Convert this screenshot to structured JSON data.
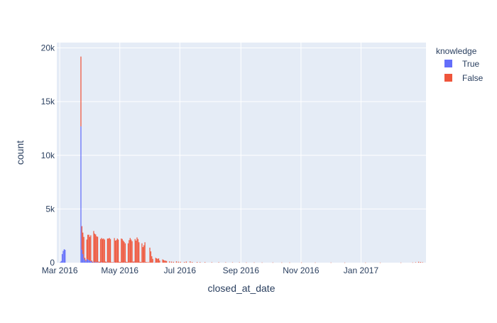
{
  "chart_data": {
    "type": "bar",
    "barmode": "stack",
    "xlabel": "closed_at_date",
    "ylabel": "count",
    "legend_title": "knowledge",
    "legend_position": "top-right",
    "grid": true,
    "x_range": [
      "2016-02-27",
      "2017-03-08"
    ],
    "ylim": [
      0,
      20500
    ],
    "x_ticks": [
      {
        "date": "2016-03-01",
        "label": "Mar 2016"
      },
      {
        "date": "2016-05-01",
        "label": "May 2016"
      },
      {
        "date": "2016-07-01",
        "label": "Jul 2016"
      },
      {
        "date": "2016-09-01",
        "label": "Sep 2016"
      },
      {
        "date": "2016-11-01",
        "label": "Nov 2016"
      },
      {
        "date": "2017-01-01",
        "label": "Jan 2017"
      }
    ],
    "y_ticks": [
      {
        "value": 0,
        "label": "0"
      },
      {
        "value": 5000,
        "label": "5k"
      },
      {
        "value": 10000,
        "label": "10k"
      },
      {
        "value": 15000,
        "label": "15k"
      },
      {
        "value": 20000,
        "label": "20k"
      }
    ],
    "series": [
      {
        "name": "True",
        "color": "#636efa",
        "points": [
          [
            "2016-03-01",
            50
          ],
          [
            "2016-03-02",
            150
          ],
          [
            "2016-03-03",
            800
          ],
          [
            "2016-03-04",
            1100
          ],
          [
            "2016-03-05",
            1250
          ],
          [
            "2016-03-06",
            1200
          ],
          [
            "2016-03-22",
            12700
          ],
          [
            "2016-03-23",
            1200
          ],
          [
            "2016-03-24",
            800
          ],
          [
            "2016-03-25",
            400
          ],
          [
            "2016-03-26",
            250
          ],
          [
            "2016-03-27",
            150
          ],
          [
            "2016-03-28",
            350
          ],
          [
            "2016-03-29",
            300
          ],
          [
            "2016-03-30",
            250
          ],
          [
            "2016-03-31",
            200
          ],
          [
            "2016-04-01",
            150
          ],
          [
            "2016-04-02",
            100
          ],
          [
            "2016-04-04",
            100
          ],
          [
            "2016-04-06",
            80
          ],
          [
            "2016-04-08",
            60
          ],
          [
            "2016-04-12",
            50
          ],
          [
            "2016-04-18",
            40
          ],
          [
            "2016-04-25",
            40
          ],
          [
            "2016-05-05",
            30
          ],
          [
            "2016-05-15",
            30
          ],
          [
            "2016-05-25",
            20
          ],
          [
            "2016-06-05",
            20
          ]
        ]
      },
      {
        "name": "False",
        "color": "#ef553b",
        "points": [
          [
            "2016-03-22",
            6500
          ],
          [
            "2016-03-23",
            2200
          ],
          [
            "2016-03-24",
            2000
          ],
          [
            "2016-03-25",
            2000
          ],
          [
            "2016-03-26",
            200
          ],
          [
            "2016-03-27",
            100
          ],
          [
            "2016-03-28",
            1800
          ],
          [
            "2016-03-29",
            2300
          ],
          [
            "2016-03-30",
            2350
          ],
          [
            "2016-03-31",
            2200
          ],
          [
            "2016-04-01",
            2400
          ],
          [
            "2016-04-02",
            100
          ],
          [
            "2016-04-03",
            80
          ],
          [
            "2016-04-04",
            2850
          ],
          [
            "2016-04-05",
            2700
          ],
          [
            "2016-04-06",
            2550
          ],
          [
            "2016-04-07",
            2450
          ],
          [
            "2016-04-08",
            2350
          ],
          [
            "2016-04-09",
            100
          ],
          [
            "2016-04-10",
            80
          ],
          [
            "2016-04-11",
            2200
          ],
          [
            "2016-04-12",
            2250
          ],
          [
            "2016-04-13",
            2200
          ],
          [
            "2016-04-14",
            2250
          ],
          [
            "2016-04-15",
            2150
          ],
          [
            "2016-04-16",
            100
          ],
          [
            "2016-04-17",
            80
          ],
          [
            "2016-04-18",
            2200
          ],
          [
            "2016-04-19",
            2250
          ],
          [
            "2016-04-20",
            2300
          ],
          [
            "2016-04-21",
            2200
          ],
          [
            "2016-04-22",
            50
          ],
          [
            "2016-04-23",
            40
          ],
          [
            "2016-04-24",
            40
          ],
          [
            "2016-04-25",
            2250
          ],
          [
            "2016-04-26",
            2050
          ],
          [
            "2016-04-27",
            2100
          ],
          [
            "2016-04-28",
            2250
          ],
          [
            "2016-04-29",
            2150
          ],
          [
            "2016-04-30",
            80
          ],
          [
            "2016-05-01",
            60
          ],
          [
            "2016-05-02",
            2250
          ],
          [
            "2016-05-03",
            2200
          ],
          [
            "2016-05-04",
            2050
          ],
          [
            "2016-05-05",
            1900
          ],
          [
            "2016-05-06",
            1800
          ],
          [
            "2016-05-07",
            80
          ],
          [
            "2016-05-08",
            60
          ],
          [
            "2016-05-09",
            1800
          ],
          [
            "2016-05-10",
            2100
          ],
          [
            "2016-05-11",
            2300
          ],
          [
            "2016-05-12",
            2150
          ],
          [
            "2016-05-13",
            2000
          ],
          [
            "2016-05-14",
            100
          ],
          [
            "2016-05-15",
            80
          ],
          [
            "2016-05-16",
            2200
          ],
          [
            "2016-05-17",
            2050
          ],
          [
            "2016-05-18",
            2350
          ],
          [
            "2016-05-19",
            2200
          ],
          [
            "2016-05-20",
            1900
          ],
          [
            "2016-05-21",
            80
          ],
          [
            "2016-05-22",
            60
          ],
          [
            "2016-05-23",
            1800
          ],
          [
            "2016-05-24",
            1450
          ],
          [
            "2016-05-25",
            1600
          ],
          [
            "2016-05-26",
            1900
          ],
          [
            "2016-05-27",
            60
          ],
          [
            "2016-05-28",
            50
          ],
          [
            "2016-05-29",
            40
          ],
          [
            "2016-05-30",
            40
          ],
          [
            "2016-05-31",
            1400
          ],
          [
            "2016-06-01",
            1050
          ],
          [
            "2016-06-02",
            600
          ],
          [
            "2016-06-03",
            350
          ],
          [
            "2016-06-06",
            450
          ],
          [
            "2016-06-07",
            400
          ],
          [
            "2016-06-08",
            350
          ],
          [
            "2016-06-09",
            400
          ],
          [
            "2016-06-10",
            200
          ],
          [
            "2016-06-13",
            300
          ],
          [
            "2016-06-14",
            250
          ],
          [
            "2016-06-15",
            200
          ],
          [
            "2016-06-16",
            180
          ],
          [
            "2016-06-17",
            150
          ],
          [
            "2016-06-20",
            120
          ],
          [
            "2016-06-22",
            100
          ],
          [
            "2016-06-24",
            80
          ],
          [
            "2016-06-27",
            120
          ],
          [
            "2016-06-29",
            90
          ],
          [
            "2016-07-01",
            80
          ],
          [
            "2016-07-05",
            60
          ],
          [
            "2016-07-07",
            100
          ],
          [
            "2016-07-11",
            120
          ],
          [
            "2016-07-13",
            60
          ],
          [
            "2016-07-18",
            60
          ],
          [
            "2016-07-21",
            50
          ],
          [
            "2016-07-26",
            50
          ],
          [
            "2016-08-02",
            40
          ],
          [
            "2016-08-09",
            40
          ],
          [
            "2016-08-16",
            30
          ],
          [
            "2016-08-23",
            30
          ],
          [
            "2016-08-30",
            30
          ],
          [
            "2016-09-06",
            20
          ],
          [
            "2016-09-14",
            20
          ],
          [
            "2016-09-22",
            20
          ],
          [
            "2016-10-03",
            20
          ],
          [
            "2016-10-12",
            15
          ],
          [
            "2016-10-20",
            15
          ],
          [
            "2016-11-01",
            15
          ],
          [
            "2016-11-15",
            15
          ],
          [
            "2016-12-01",
            15
          ],
          [
            "2016-12-15",
            10
          ],
          [
            "2017-01-05",
            10
          ],
          [
            "2017-01-20",
            10
          ],
          [
            "2017-02-10",
            10
          ],
          [
            "2017-02-22",
            20
          ],
          [
            "2017-02-25",
            40
          ],
          [
            "2017-02-28",
            80
          ],
          [
            "2017-03-02",
            60
          ],
          [
            "2017-03-04",
            40
          ]
        ]
      }
    ]
  }
}
